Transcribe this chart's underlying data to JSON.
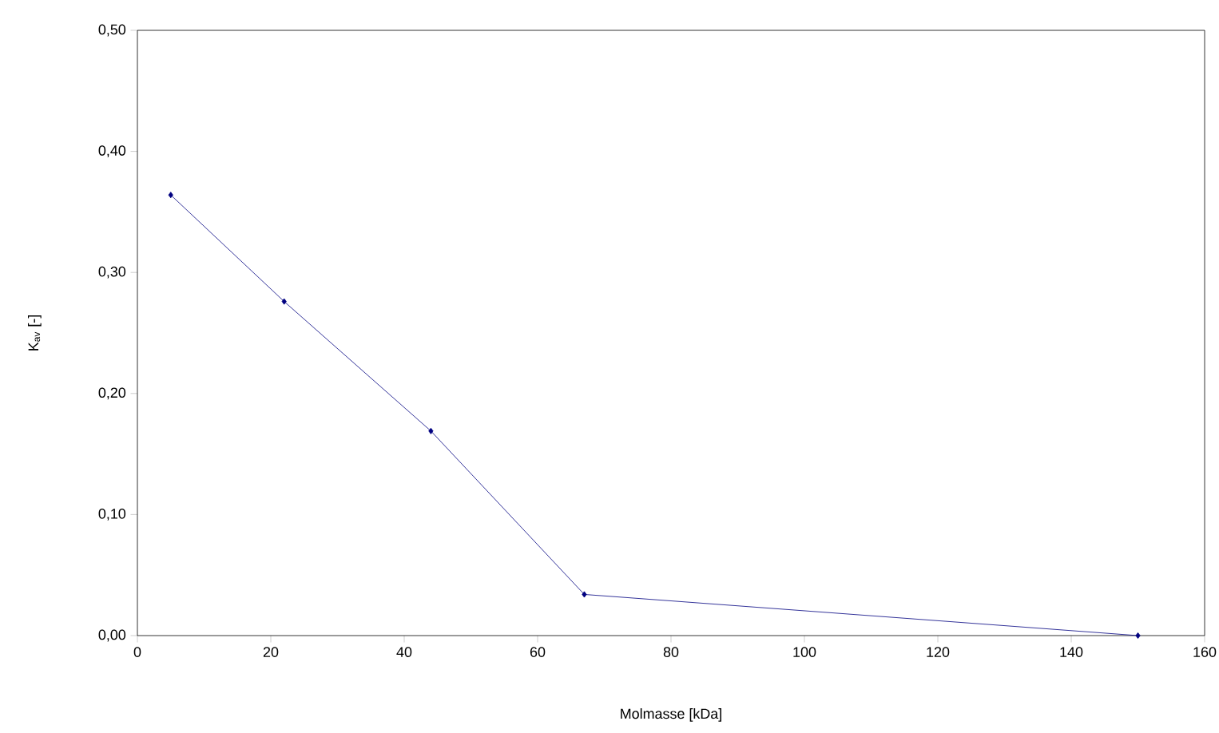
{
  "chart_data": {
    "type": "line",
    "xlabel": "Molmasse [kDa]",
    "ylabel": "K$_{av}$ [-]",
    "x": [
      5,
      22,
      44,
      67,
      150
    ],
    "series": [
      {
        "color": "#000080",
        "values": [
          0.364,
          0.276,
          0.169,
          0.034,
          0.0
        ]
      }
    ],
    "xlim": [
      0,
      160
    ],
    "xticks": [
      0,
      20,
      40,
      60,
      80,
      100,
      120,
      140,
      160
    ],
    "ylim": [
      0,
      0.5
    ],
    "yticks": [
      {
        "value": 0,
        "label": "0,00"
      },
      {
        "value": 0.1,
        "label": "0,10"
      },
      {
        "value": 0.2,
        "label": "0,20"
      },
      {
        "value": 0.3,
        "label": "0,30"
      },
      {
        "value": 0.4,
        "label": "0,40"
      },
      {
        "value": 0.5,
        "label": "0,50"
      }
    ],
    "grid": false,
    "marker": "diamond",
    "line_style": "solid"
  }
}
